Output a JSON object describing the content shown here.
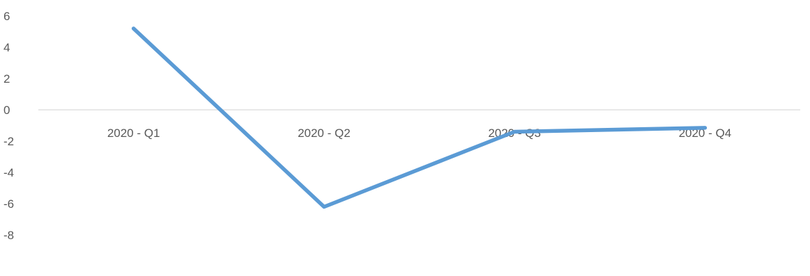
{
  "chart_data": {
    "type": "line",
    "title": "",
    "xlabel": "",
    "ylabel": "",
    "categories": [
      "2020 - Q1",
      "2020 - Q2",
      "2020 - Q3",
      "2020 - Q4"
    ],
    "series": [
      {
        "values": [
          5.2,
          -6.2,
          -1.4,
          -1.15
        ],
        "color": "#5B9BD5"
      }
    ],
    "ylim": [
      -8,
      6
    ],
    "y_ticks": [
      "6",
      "4",
      "2",
      "0",
      "-2",
      "-4",
      "-6",
      "-8"
    ],
    "grid": false,
    "legend": "none",
    "zero_line": true,
    "zero_line_color": "#D9D9D9",
    "tick_label_color": "#595959"
  }
}
